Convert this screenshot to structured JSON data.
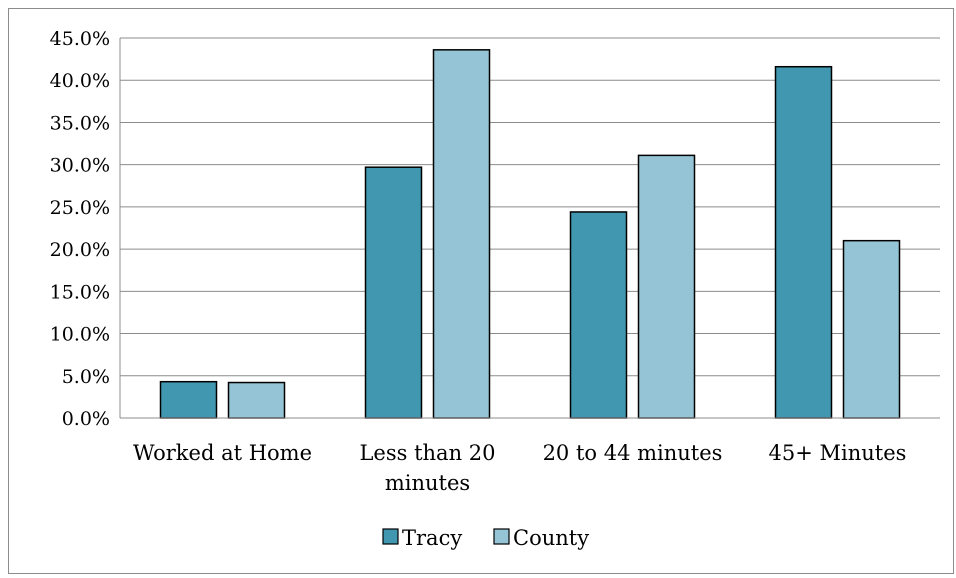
{
  "chart_data": {
    "type": "bar",
    "categories": [
      "Worked at Home",
      "Less than 20 minutes",
      "20 to 44 minutes",
      "45+ Minutes"
    ],
    "category_lines": [
      [
        "Worked at Home"
      ],
      [
        "Less than 20",
        "minutes"
      ],
      [
        "20 to 44 minutes"
      ],
      [
        "45+ Minutes"
      ]
    ],
    "series": [
      {
        "name": "Tracy",
        "values": [
          4.3,
          29.7,
          24.4,
          41.6
        ],
        "color": "#4197b0"
      },
      {
        "name": "County",
        "values": [
          4.2,
          43.6,
          31.1,
          21.0
        ],
        "color": "#95c4d6"
      }
    ],
    "ylim": [
      0,
      45
    ],
    "yticks": [
      0,
      5,
      10,
      15,
      20,
      25,
      30,
      35,
      40,
      45
    ],
    "ytick_labels": [
      "0.0%",
      "5.0%",
      "10.0%",
      "15.0%",
      "20.0%",
      "25.0%",
      "30.0%",
      "35.0%",
      "40.0%",
      "45.0%"
    ],
    "grid": true,
    "legend_position": "bottom"
  }
}
